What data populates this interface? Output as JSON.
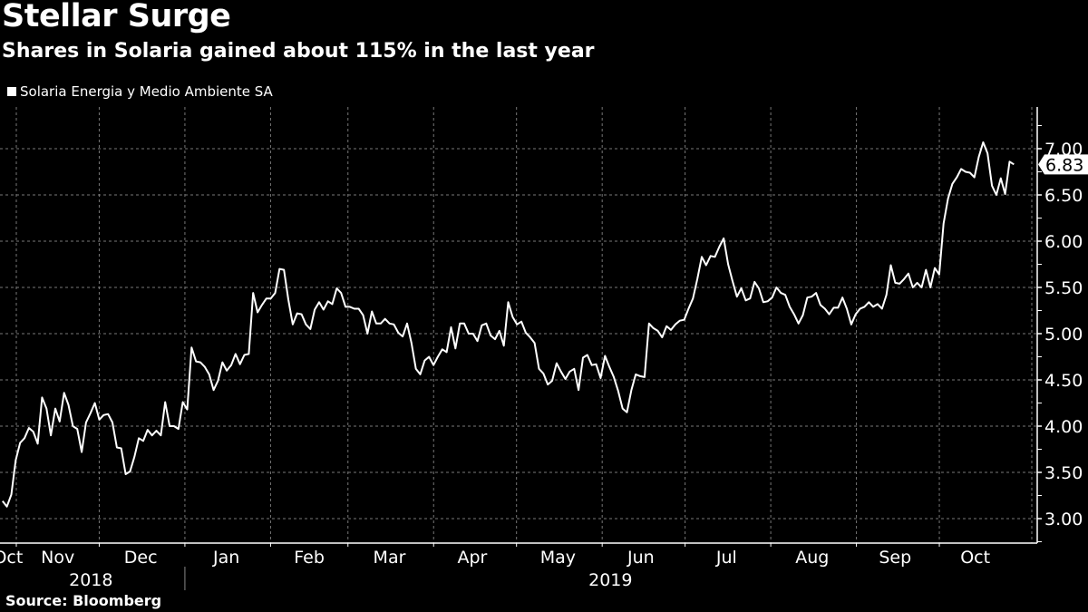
{
  "title": "Stellar Surge",
  "subtitle": "Shares in Solaria gained about 115% in the last year",
  "source": "Source: Bloomberg",
  "chart_data": {
    "type": "line",
    "title": "Stellar Surge",
    "subtitle": "Shares in Solaria gained about 115% in the last year",
    "legend": [
      "Solaria Energia y Medio Ambiente SA"
    ],
    "legend_placement": "top-left",
    "grid": true,
    "xlabel": "",
    "ylabel": "",
    "x_start_date": "2018-10-27",
    "x_end_date": "2019-10-28",
    "ylim": [
      2.7,
      7.45
    ],
    "y_ticks": [
      "3.00",
      "3.50",
      "4.00",
      "4.50",
      "5.00",
      "5.50",
      "6.00",
      "6.50",
      "7.00"
    ],
    "last_value_label": "6.83",
    "months": [
      {
        "label": "Oct",
        "date": "2018-10-29"
      },
      {
        "label": "Nov",
        "date": "2018-11-16"
      },
      {
        "label": "Dec",
        "date": "2018-12-16"
      },
      {
        "label": "Jan",
        "date": "2019-01-16"
      },
      {
        "label": "Feb",
        "date": "2019-02-15"
      },
      {
        "label": "Mar",
        "date": "2019-03-16"
      },
      {
        "label": "Apr",
        "date": "2019-04-15"
      },
      {
        "label": "May",
        "date": "2019-05-16"
      },
      {
        "label": "Jun",
        "date": "2019-06-15"
      },
      {
        "label": "Jul",
        "date": "2019-07-16"
      },
      {
        "label": "Aug",
        "date": "2019-08-16"
      },
      {
        "label": "Sep",
        "date": "2019-09-15"
      },
      {
        "label": "Oct",
        "date": "2019-10-14"
      }
    ],
    "month_boundaries": [
      "2018-11-01",
      "2018-12-01",
      "2019-01-01",
      "2019-02-01",
      "2019-03-01",
      "2019-04-01",
      "2019-05-01",
      "2019-06-01",
      "2019-07-01",
      "2019-08-01",
      "2019-09-01",
      "2019-10-01"
    ],
    "years": [
      {
        "label": "2018",
        "date": "2018-11-28"
      },
      {
        "label": "2019",
        "date": "2019-06-04"
      }
    ],
    "year_boundary": "2019-01-01",
    "series": [
      {
        "name": "Solaria Energia y Medio Ambiente SA",
        "color": "#ffffff",
        "values": [
          3.19,
          3.13,
          3.26,
          3.63,
          3.82,
          3.87,
          3.98,
          3.94,
          3.81,
          4.31,
          4.19,
          3.9,
          4.19,
          4.05,
          4.36,
          4.23,
          4.0,
          3.97,
          3.72,
          4.04,
          4.14,
          4.25,
          4.07,
          4.12,
          4.13,
          4.04,
          3.77,
          3.76,
          3.48,
          3.51,
          3.67,
          3.87,
          3.84,
          3.96,
          3.9,
          3.95,
          3.9,
          4.26,
          4.0,
          4.0,
          3.97,
          4.26,
          4.18,
          4.85,
          4.7,
          4.69,
          4.64,
          4.56,
          4.39,
          4.49,
          4.69,
          4.6,
          4.66,
          4.78,
          4.67,
          4.77,
          4.78,
          5.44,
          5.23,
          5.31,
          5.38,
          5.38,
          5.44,
          5.7,
          5.69,
          5.37,
          5.1,
          5.22,
          5.21,
          5.1,
          5.05,
          5.26,
          5.34,
          5.26,
          5.35,
          5.32,
          5.49,
          5.44,
          5.29,
          5.29,
          5.27,
          5.27,
          5.2,
          5.0,
          5.24,
          5.11,
          5.11,
          5.16,
          5.11,
          5.1,
          5.01,
          4.97,
          5.11,
          4.9,
          4.62,
          4.56,
          4.71,
          4.75,
          4.66,
          4.75,
          4.83,
          4.8,
          5.07,
          4.84,
          5.11,
          5.11,
          5.0,
          5.0,
          4.92,
          5.09,
          5.11,
          4.98,
          4.94,
          5.03,
          4.87,
          5.34,
          5.18,
          5.1,
          5.13,
          5.01,
          4.96,
          4.9,
          4.62,
          4.57,
          4.45,
          4.49,
          4.68,
          4.59,
          4.51,
          4.59,
          4.62,
          4.39,
          4.74,
          4.77,
          4.66,
          4.67,
          4.52,
          4.76,
          4.64,
          4.53,
          4.38,
          4.19,
          4.15,
          4.39,
          4.56,
          4.54,
          4.53,
          5.11,
          5.06,
          5.03,
          4.96,
          5.08,
          5.04,
          5.1,
          5.14,
          5.15,
          5.27,
          5.38,
          5.59,
          5.83,
          5.74,
          5.84,
          5.83,
          5.94,
          6.03,
          5.75,
          5.57,
          5.4,
          5.49,
          5.36,
          5.38,
          5.56,
          5.49,
          5.34,
          5.35,
          5.39,
          5.5,
          5.44,
          5.42,
          5.29,
          5.21,
          5.11,
          5.2,
          5.39,
          5.4,
          5.44,
          5.31,
          5.27,
          5.21,
          5.28,
          5.28,
          5.39,
          5.27,
          5.1,
          5.21,
          5.27,
          5.29,
          5.34,
          5.29,
          5.32,
          5.27,
          5.42,
          5.74,
          5.55,
          5.54,
          5.59,
          5.65,
          5.5,
          5.55,
          5.5,
          5.69,
          5.5,
          5.71,
          5.64,
          6.19,
          6.46,
          6.62,
          6.69,
          6.78,
          6.75,
          6.74,
          6.69,
          6.91,
          7.07,
          6.95,
          6.6,
          6.5,
          6.68,
          6.51,
          6.86,
          6.83
        ]
      }
    ]
  }
}
